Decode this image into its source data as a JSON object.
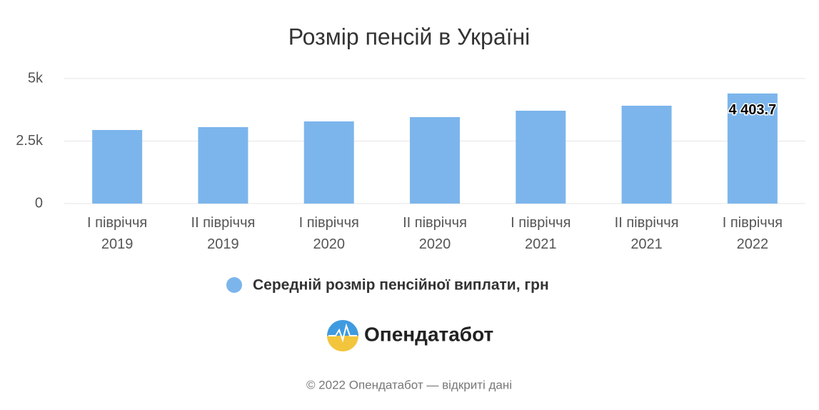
{
  "chart_data": {
    "type": "bar",
    "title": "Розмір пенсій в Україні",
    "categories": [
      "І півріччя 2019",
      "ІІ півріччя 2019",
      "І півріччя 2020",
      "ІІ півріччя 2020",
      "І півріччя 2021",
      "ІІ півріччя 2021",
      "І півріччя 2022"
    ],
    "series": [
      {
        "name": "Середній розмір пенсійної виплати, грн",
        "color": "#7cb5ec",
        "values": [
          2943,
          3057,
          3286,
          3457,
          3714,
          3914,
          4403.7
        ],
        "value_labels": [
          null,
          null,
          null,
          null,
          null,
          null,
          "4 403.7"
        ]
      }
    ],
    "ylim": [
      0,
      5000
    ],
    "yticks": [
      0,
      {
        "value": 2500,
        "label": "2.5k"
      },
      {
        "value": 5000,
        "label": "5k"
      }
    ],
    "grid": true
  },
  "logo": "Опендатабот",
  "footer": "© 2022 Опендатабот — відкриті дані"
}
